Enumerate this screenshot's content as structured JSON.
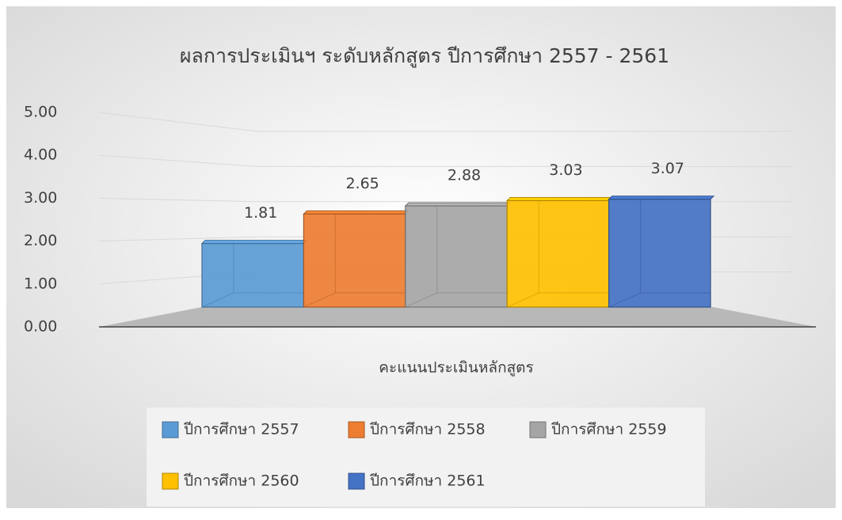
{
  "chart_data": {
    "type": "bar3d",
    "title": "ผลการประเมินฯ ระดับหลักสูตร ปีการศึกษา 2557 - 2561",
    "categories": [
      "คะแนนประเมินหลักสูตร"
    ],
    "series": [
      {
        "name": "ปีการศึกษา 2557",
        "color": "#5b9bd5",
        "values": [
          1.81
        ]
      },
      {
        "name": "ปีการศึกษา 2558",
        "color": "#ed7d31",
        "values": [
          2.65
        ]
      },
      {
        "name": "ปีการศึกษา 2559",
        "color": "#a5a5a5",
        "values": [
          2.88
        ]
      },
      {
        "name": "ปีการศึกษา 2560",
        "color": "#ffc000",
        "values": [
          3.03
        ]
      },
      {
        "name": "ปีการศึกษา 2561",
        "color": "#4472c4",
        "values": [
          3.07
        ]
      }
    ],
    "ylim": [
      0,
      5
    ],
    "yticks": [
      {
        "value": 0,
        "label": "0.00"
      },
      {
        "value": 1,
        "label": "1.00"
      },
      {
        "value": 2,
        "label": "2.00"
      },
      {
        "value": 3,
        "label": "3.00"
      },
      {
        "value": 4,
        "label": "4.00"
      },
      {
        "value": 5,
        "label": "5.00"
      }
    ],
    "grid": true,
    "legend": "bottom"
  }
}
